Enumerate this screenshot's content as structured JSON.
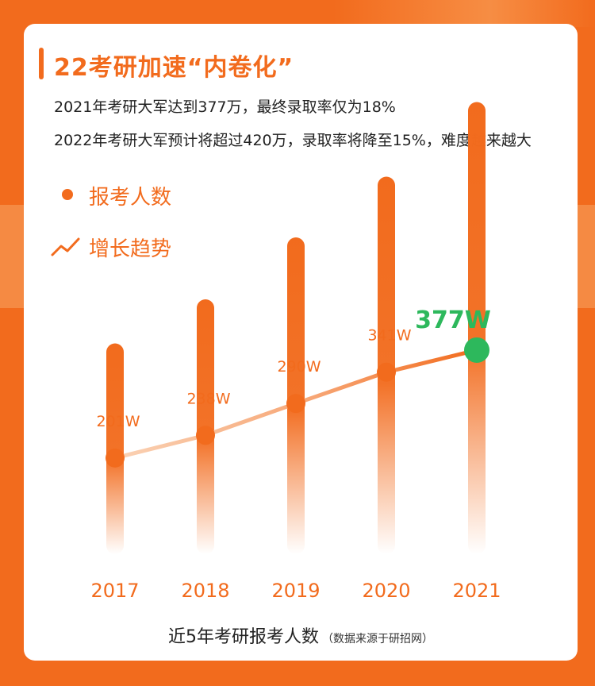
{
  "colors": {
    "accent": "#F26B1D",
    "accent_light": "#F7B58A",
    "highlight": "#2DB85C",
    "text_dark": "#222222"
  },
  "header": {
    "title": "22考研加速“内卷化”",
    "line1": "2021年考研大军达到377万，最终录取率仅为18%",
    "line2": "2022年考研大军预计将超过420万，录取率将降至15%，难度越来越大"
  },
  "legend": {
    "applicants": "报考人数",
    "trend": "增长趋势"
  },
  "footer": {
    "title": "近5年考研报考人数",
    "note": "（数据来源于研招网）"
  },
  "chart_data": {
    "type": "bar",
    "categories": [
      "2017",
      "2018",
      "2019",
      "2020",
      "2021"
    ],
    "series": [
      {
        "name": "报考人数",
        "values": [
          201,
          238,
          290,
          341,
          377
        ],
        "labels": [
          "201W",
          "238W",
          "290W",
          "341W",
          "377W"
        ]
      }
    ],
    "overlay": "line",
    "highlight_index": 4,
    "legend_position": "top-left",
    "grid": false
  }
}
